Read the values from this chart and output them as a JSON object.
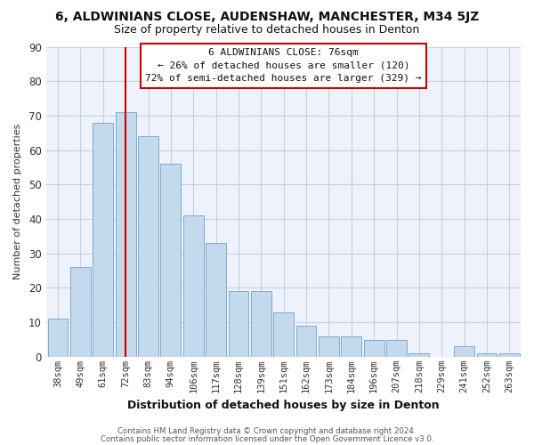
{
  "title": "6, ALDWINIANS CLOSE, AUDENSHAW, MANCHESTER, M34 5JZ",
  "subtitle": "Size of property relative to detached houses in Denton",
  "xlabel": "Distribution of detached houses by size in Denton",
  "ylabel": "Number of detached properties",
  "categories": [
    "38sqm",
    "49sqm",
    "61sqm",
    "72sqm",
    "83sqm",
    "94sqm",
    "106sqm",
    "117sqm",
    "128sqm",
    "139sqm",
    "151sqm",
    "162sqm",
    "173sqm",
    "184sqm",
    "196sqm",
    "207sqm",
    "218sqm",
    "229sqm",
    "241sqm",
    "252sqm",
    "263sqm"
  ],
  "values": [
    11,
    26,
    68,
    71,
    64,
    56,
    41,
    33,
    19,
    19,
    13,
    9,
    6,
    6,
    5,
    5,
    1,
    0,
    3,
    1,
    1
  ],
  "bar_color": "#c5d9ed",
  "bar_edge_color": "#7aadd4",
  "vline_x_index": 3,
  "vline_color": "#cc0000",
  "ylim": [
    0,
    90
  ],
  "yticks": [
    0,
    10,
    20,
    30,
    40,
    50,
    60,
    70,
    80,
    90
  ],
  "annotation_line1": "6 ALDWINIANS CLOSE: 76sqm",
  "annotation_line2": "← 26% of detached houses are smaller (120)",
  "annotation_line3": "72% of semi-detached houses are larger (329) →",
  "annotation_box_edgecolor": "#cc0000",
  "footer1": "Contains HM Land Registry data © Crown copyright and database right 2024.",
  "footer2": "Contains public sector information licensed under the Open Government Licence v3.0.",
  "fig_background": "#ffffff",
  "plot_background": "#edf2fb",
  "grid_color": "#c5d0e8",
  "title_fontsize": 10,
  "subtitle_fontsize": 9
}
